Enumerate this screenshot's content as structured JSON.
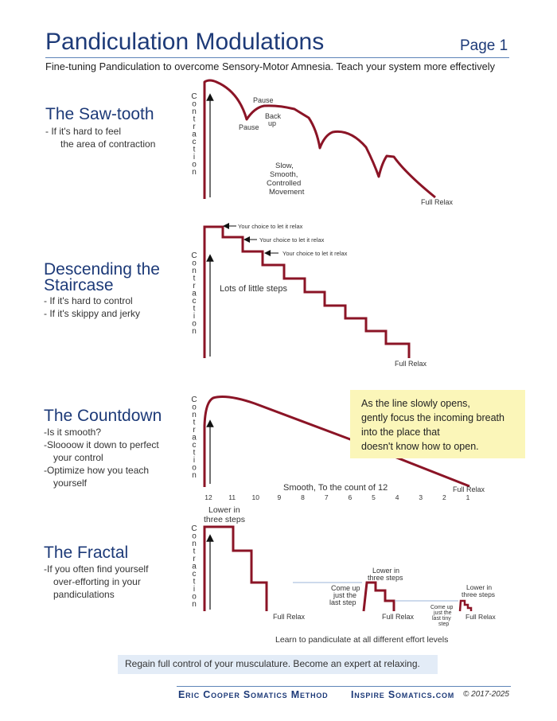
{
  "header": {
    "title": "Pandiculation Modulations",
    "page_label": "Page 1",
    "subtitle": "Fine-tuning Pandiculation to overcome Sensory-Motor Amnesia. Teach your system more effectively"
  },
  "axis_label_letters": [
    "C",
    "o",
    "n",
    "t",
    "r",
    "a",
    "c",
    "t",
    "i",
    "o",
    "n"
  ],
  "sections": {
    "sawtooth": {
      "title": "The Saw-tooth",
      "desc": [
        "- If it's hard to feel",
        "the area of contraction"
      ],
      "annotations": {
        "pause_top": "Pause",
        "pause_bottom": "Pause",
        "back_up_1": "Back",
        "back_up_2": "up",
        "slow_1": "Slow,",
        "slow_2": "Smooth,",
        "slow_3": "Controlled",
        "slow_4": "Movement",
        "full_relax": "Full Relax"
      }
    },
    "staircase": {
      "title_1": "Descending the",
      "title_2": "Staircase",
      "desc": [
        "- If it's hard to control",
        "- If it's skippy and jerky"
      ],
      "annotations": {
        "choice_1": "Your choice to let it relax",
        "choice_2": "Your choice to let it relax",
        "choice_3": "Your choice to let it relax",
        "little_steps": "Lots of little steps",
        "full_relax": "Full Relax"
      }
    },
    "countdown": {
      "title": "The Countdown",
      "desc": [
        "-Is it smooth?",
        "-Sloooow it down to perfect",
        "your control",
        "-Optimize how you teach",
        "yourself"
      ],
      "count_labels": [
        "12",
        "11",
        "10",
        "9",
        "8",
        "7",
        "6",
        "5",
        "4",
        "3",
        "2",
        "1"
      ],
      "smooth_label": "Smooth, To the count of 12",
      "full_relax": "Full Relax",
      "callout": [
        "As the line slowly opens,",
        "gently focus the incoming breath",
        "into the place that",
        "doesn't know how to open."
      ]
    },
    "fractal": {
      "title": "The Fractal",
      "desc": [
        "-If you often find yourself",
        "over-efforting in your",
        "pandiculations"
      ],
      "annotations": {
        "lower_big_1": "Lower in",
        "lower_big_2": "three steps",
        "full_relax_1": "Full Relax",
        "come_up_1": "Come up",
        "come_up_2": "just the",
        "come_up_3": "last step",
        "lower_mid_1": "Lower in",
        "lower_mid_2": "three steps",
        "full_relax_2": "Full Relax",
        "come_tiny_1": "Come up",
        "come_tiny_2": "just the",
        "come_tiny_3": "last tiny",
        "come_tiny_4": "step",
        "lower_small_1": "Lower in",
        "lower_small_2": "three steps",
        "full_relax_3": "Full Relax",
        "learn": "Learn to pandiculate at all different effort levels"
      }
    }
  },
  "tagline": "Regain full control of your musculature.  Become an expert at relaxing.",
  "footer": {
    "brand": "Eric Cooper Somatics Method",
    "site": "Inspire Somatics.com",
    "copyright": "© 2017-2025"
  },
  "colors": {
    "curve": "#8b1426",
    "title": "#1d3a78",
    "callout": "#fbf6b9",
    "tagline_bg": "#e3ecf7"
  }
}
